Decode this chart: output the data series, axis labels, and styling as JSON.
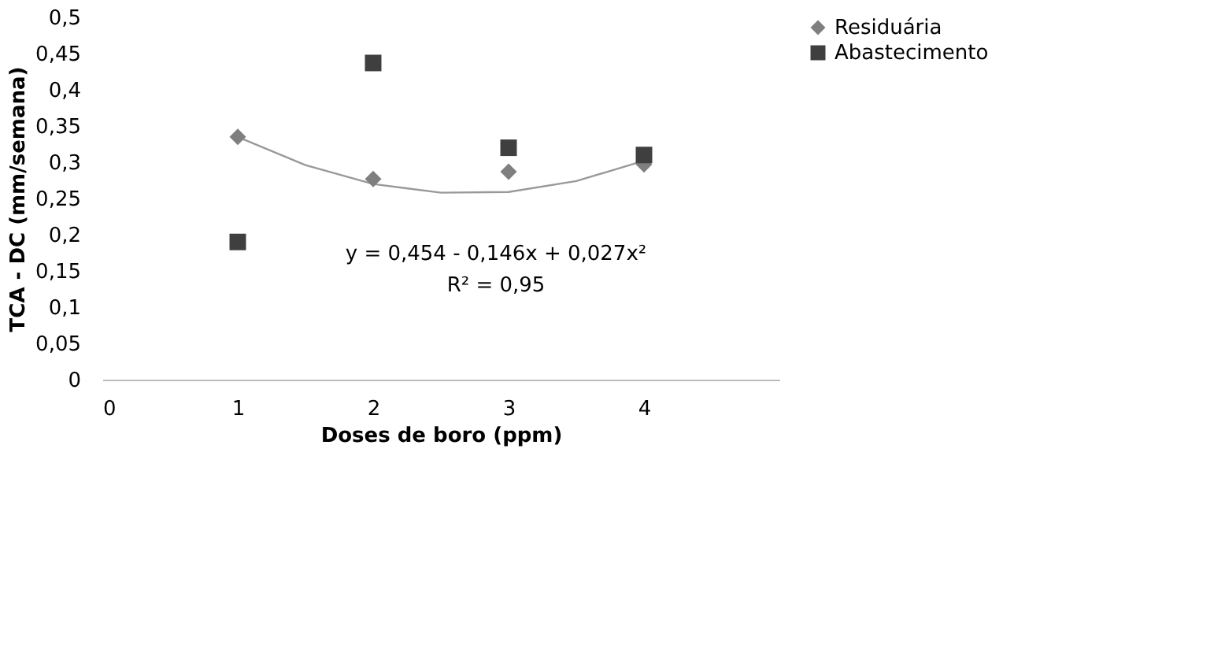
{
  "chart_data": {
    "type": "scatter",
    "xlabel": "Doses de boro (ppm)",
    "ylabel": "TCA - DC (mm/semana)",
    "x": [
      1,
      2,
      3,
      4
    ],
    "series": [
      {
        "name": "Residuária",
        "color": "#7f7f7f",
        "marker": "diamond",
        "values": [
          0.335,
          0.277,
          0.287,
          0.297
        ]
      },
      {
        "name": "Abastecimento",
        "color": "#3f3f3f",
        "marker": "square",
        "values": [
          0.19,
          0.437,
          0.32,
          0.31
        ]
      },
      {
        "type": "line",
        "color": "#999999",
        "x": [
          1,
          1.5,
          2,
          2.5,
          3,
          3.5,
          4
        ],
        "values": [
          0.335,
          0.296,
          0.27,
          0.258,
          0.259,
          0.274,
          0.302
        ]
      }
    ],
    "xlim": [
      0,
      5
    ],
    "xticks": [
      0,
      1,
      2,
      3,
      4
    ],
    "ylim": [
      0,
      0.5
    ],
    "yticks": [
      {
        "value": 0,
        "label": "0"
      },
      {
        "value": 0.05,
        "label": "0,05"
      },
      {
        "value": 0.1,
        "label": "0,1"
      },
      {
        "value": 0.15,
        "label": "0,15"
      },
      {
        "value": 0.2,
        "label": "0,2"
      },
      {
        "value": 0.25,
        "label": "0,25"
      },
      {
        "value": 0.3,
        "label": "0,3"
      },
      {
        "value": 0.35,
        "label": "0,35"
      },
      {
        "value": 0.4,
        "label": "0,4"
      },
      {
        "value": 0.45,
        "label": "0,45"
      },
      {
        "value": 0.5,
        "label": "0,5"
      }
    ],
    "grid": false,
    "legend": "top right",
    "annotations": [
      "y = 0,454 - 0,146x + 0,027x²",
      "R² = 0,95"
    ]
  }
}
